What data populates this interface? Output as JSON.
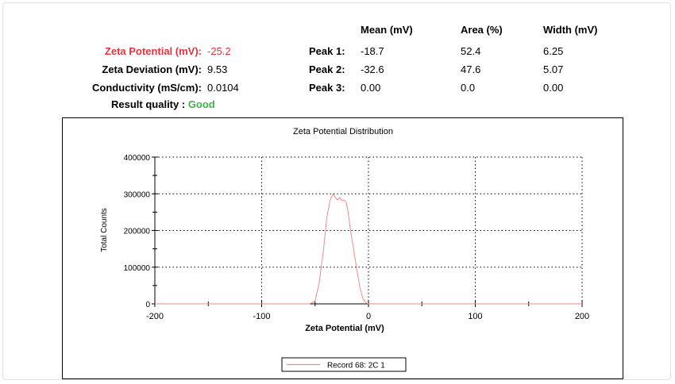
{
  "summary": {
    "zeta_potential": {
      "label": "Zeta Potential (mV):",
      "value": "-25.2"
    },
    "zeta_deviation": {
      "label": "Zeta Deviation (mV):",
      "value": "9.53"
    },
    "conductivity": {
      "label": "Conductivity (mS/cm):",
      "value": "0.0104"
    },
    "result_quality": {
      "label": "Result quality :",
      "value": "Good"
    }
  },
  "peaks_table": {
    "columns": [
      "Mean (mV)",
      "Area (%)",
      "Width (mV)"
    ],
    "rows": [
      {
        "label": "Peak 1:",
        "mean": "-18.7",
        "area": "52.4",
        "width": "6.25"
      },
      {
        "label": "Peak 2:",
        "mean": "-32.6",
        "area": "47.6",
        "width": "5.07"
      },
      {
        "label": "Peak 3:",
        "mean": "0.00",
        "area": "0.0",
        "width": "0.00"
      }
    ]
  },
  "colors": {
    "highlight_red": "#e8323c",
    "quality_green": "#3fb24a",
    "series_line": "#ef8a8a"
  },
  "chart_data": {
    "type": "line",
    "title": "Zeta Potential Distribution",
    "xlabel": "Zeta Potential (mV)",
    "ylabel": "Total Counts",
    "xlim": [
      -200,
      200
    ],
    "ylim": [
      0,
      400000
    ],
    "xticks": [
      "-200",
      "-100",
      "0",
      "100",
      "200"
    ],
    "yticks": [
      "0",
      "100000",
      "200000",
      "300000",
      "400000"
    ],
    "grid": true,
    "legend_position": "bottom-center",
    "series": [
      {
        "name": "Record 68: 2C 1",
        "color": "#ef8a8a",
        "x": [
          -200,
          -55,
          -50,
          -46,
          -42,
          -39,
          -36,
          -33,
          -31,
          -29,
          -27,
          -25,
          -23,
          -21,
          -19,
          -17,
          -14,
          -11,
          -8,
          -5,
          -2,
          0,
          200
        ],
        "y": [
          0,
          0,
          8000,
          60000,
          150000,
          235000,
          283000,
          300000,
          290000,
          283000,
          290000,
          282000,
          283000,
          278000,
          250000,
          205000,
          150000,
          95000,
          45000,
          12000,
          2000,
          0,
          0
        ]
      }
    ]
  }
}
